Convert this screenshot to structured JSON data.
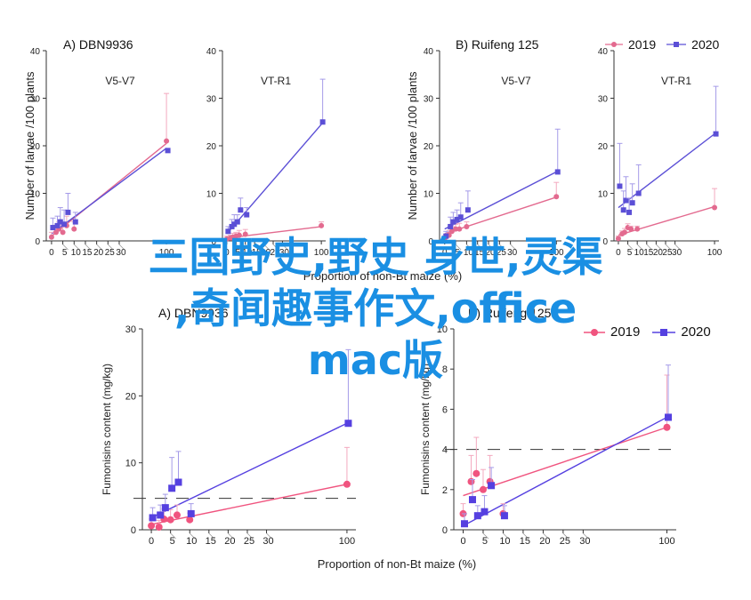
{
  "colors": {
    "s2019": "#e36a8f",
    "s2020": "#5b4fd6",
    "s2019_bottom": "#f0547f",
    "s2020_bottom": "#5540e0",
    "overlay": "#1a8fe3"
  },
  "panels": {
    "A": {
      "title": "A)  DBN9936"
    },
    "B": {
      "title": "B)  Ruifeng 125"
    },
    "C": {
      "title": "A) DBN9936"
    },
    "D": {
      "title": "B) Ruifeng 125"
    }
  },
  "legend_top": {
    "s2019": "2019",
    "s2020": "2020"
  },
  "legend_bottom": {
    "s2019": "2019",
    "s2020": "2020"
  },
  "overlay": {
    "line1": "三国野史,野史 身世,灵渠",
    "line2": ",奇闻趣事作文,office",
    "line3": "mac版"
  },
  "chart_data": [
    {
      "type": "scatter",
      "title": "V5-V7",
      "ylabel": "Number of larvae /100 plants",
      "xlabel": "Proportion of non-Bt maize (%)",
      "ylim": [
        0,
        40
      ],
      "yticks": [
        0,
        10,
        20,
        30,
        40
      ],
      "xticks": [
        0,
        5,
        10,
        15,
        20,
        25,
        30,
        100
      ],
      "series": [
        {
          "name": "2019",
          "x": [
            0,
            2,
            3.3,
            5,
            6.7,
            10,
            100
          ],
          "y": [
            0.8,
            1.8,
            2.5,
            1.8,
            3.2,
            2.5,
            21
          ],
          "err": [
            1,
            1.5,
            1.5,
            1.5,
            2,
            1.5,
            10
          ]
        },
        {
          "name": "2020",
          "x": [
            0,
            2,
            3.3,
            5,
            6.7,
            10,
            100
          ],
          "y": [
            2.8,
            3.2,
            4,
            3.5,
            6,
            4,
            19
          ],
          "err": [
            2,
            2,
            3,
            3,
            4,
            2,
            0
          ]
        }
      ],
      "trend": [
        {
          "name": "2019",
          "x": [
            0,
            100
          ],
          "y": [
            1,
            20.5
          ]
        },
        {
          "name": "2020",
          "x": [
            0,
            100
          ],
          "y": [
            1.5,
            19.5
          ]
        }
      ]
    },
    {
      "type": "scatter",
      "title": "VT-R1",
      "ylim": [
        0,
        40
      ],
      "yticks": [
        0,
        10,
        20,
        30,
        40
      ],
      "xticks": [
        0,
        5,
        10,
        15,
        20,
        25,
        30,
        100
      ],
      "series": [
        {
          "name": "2019",
          "x": [
            0,
            2,
            3.3,
            5,
            6.7,
            10,
            100
          ],
          "y": [
            0.4,
            0.6,
            0.8,
            1,
            1.2,
            1.4,
            3.2
          ],
          "err": [
            0.6,
            0.6,
            0.8,
            0.8,
            1,
            1,
            0.8
          ]
        },
        {
          "name": "2020",
          "x": [
            0,
            2,
            3.3,
            5,
            6.7,
            10,
            100
          ],
          "y": [
            2,
            3,
            3.5,
            4,
            6.5,
            5.5,
            25
          ],
          "err": [
            1,
            1.5,
            2,
            1.5,
            2.5,
            1.5,
            9
          ]
        }
      ],
      "trend": [
        {
          "name": "2019",
          "x": [
            0,
            100
          ],
          "y": [
            0.6,
            3
          ]
        },
        {
          "name": "2020",
          "x": [
            0,
            100
          ],
          "y": [
            1.5,
            24.5
          ]
        }
      ]
    },
    {
      "type": "scatter",
      "title": "V5-V7",
      "ylabel": "Number of larvae /100 plants",
      "xlabel": "Proportion of non-Bt maize (%)",
      "ylim": [
        0,
        40
      ],
      "yticks": [
        0,
        10,
        20,
        30,
        40
      ],
      "xticks": [
        0,
        5,
        10,
        15,
        20,
        25,
        30,
        100
      ],
      "series": [
        {
          "name": "2019",
          "x": [
            0,
            2,
            3.3,
            5,
            6.7,
            10,
            100
          ],
          "y": [
            0.5,
            1.2,
            2,
            2.5,
            2.5,
            3,
            9.3
          ],
          "err": [
            0.6,
            1,
            1,
            1,
            1.2,
            1,
            3
          ]
        },
        {
          "name": "2020",
          "x": [
            0,
            2,
            3.3,
            5,
            6.7,
            10,
            100
          ],
          "y": [
            1,
            3,
            4,
            4.5,
            5,
            6.5,
            14.5
          ],
          "err": [
            1,
            2,
            2,
            2,
            3,
            4,
            9
          ]
        }
      ],
      "trend": [
        {
          "name": "2019",
          "x": [
            0,
            100
          ],
          "y": [
            1.5,
            9.2
          ]
        },
        {
          "name": "2020",
          "x": [
            0,
            100
          ],
          "y": [
            2.5,
            14.5
          ]
        }
      ]
    },
    {
      "type": "scatter",
      "title": "VT-R1",
      "ylim": [
        0,
        40
      ],
      "yticks": [
        0,
        10,
        20,
        30,
        40
      ],
      "xticks": [
        0,
        5,
        10,
        15,
        20,
        25,
        30,
        100
      ],
      "series": [
        {
          "name": "2019",
          "x": [
            0,
            2,
            3.3,
            5,
            6.7,
            10,
            100
          ],
          "y": [
            0.5,
            1.5,
            1.8,
            2.8,
            2.5,
            2.5,
            7
          ],
          "err": [
            0.5,
            0.6,
            0.8,
            0.8,
            0.6,
            0.6,
            4
          ]
        },
        {
          "name": "2020",
          "x": [
            0,
            2,
            3.3,
            5,
            6.7,
            10,
            100
          ],
          "y": [
            11.5,
            6.5,
            8.5,
            6,
            8,
            10,
            22.5
          ],
          "err": [
            9,
            4,
            5,
            3,
            4,
            6,
            10
          ]
        }
      ],
      "trend": [
        {
          "name": "2019",
          "x": [
            0,
            100
          ],
          "y": [
            1.2,
            7.2
          ]
        },
        {
          "name": "2020",
          "x": [
            0,
            100
          ],
          "y": [
            7,
            22.5
          ]
        }
      ]
    },
    {
      "type": "scatter",
      "ylabel": "Fumonisins content (mg/kg)",
      "xlabel": "Proportion of non-Bt maize (%)",
      "ylim": [
        0,
        30
      ],
      "yticks": [
        0,
        10,
        20,
        30
      ],
      "xticks": [
        0,
        5,
        10,
        15,
        20,
        25,
        30,
        100
      ],
      "hline": 4.7,
      "series": [
        {
          "name": "2019",
          "x": [
            0,
            2,
            3.3,
            5,
            6.7,
            10,
            100
          ],
          "y": [
            0.6,
            0.4,
            1.6,
            1.5,
            2.2,
            1.5,
            6.8
          ],
          "err": [
            1,
            1,
            1.5,
            1.5,
            1.5,
            1,
            5.5
          ]
        },
        {
          "name": "2020",
          "x": [
            0,
            2,
            3.3,
            5,
            6.7,
            10,
            100
          ],
          "y": [
            1.8,
            2.2,
            3.3,
            6.2,
            7.1,
            2.4,
            15.9
          ],
          "err": [
            1.5,
            1.5,
            2,
            4.6,
            4.6,
            1.5,
            11
          ]
        }
      ],
      "trend": [
        {
          "name": "2019",
          "x": [
            0,
            100
          ],
          "y": [
            0.8,
            6.8
          ]
        },
        {
          "name": "2020",
          "x": [
            0,
            100
          ],
          "y": [
            1.8,
            15.9
          ]
        }
      ]
    },
    {
      "type": "scatter",
      "ylabel": "Fumonisins content (mg/kg)",
      "xlabel": "Proportion of non-Bt maize (%)",
      "ylim": [
        0,
        10
      ],
      "yticks": [
        0,
        2,
        4,
        6,
        8,
        10
      ],
      "xticks": [
        0,
        5,
        10,
        15,
        20,
        25,
        30,
        100
      ],
      "hline": 4,
      "series": [
        {
          "name": "2019",
          "x": [
            0,
            2,
            3.3,
            5,
            6.7,
            10,
            100
          ],
          "y": [
            0.8,
            2.4,
            2.8,
            2,
            2.4,
            0.8,
            5.1
          ],
          "err": [
            0.5,
            1.3,
            1.8,
            1,
            1.3,
            0.5,
            2.6
          ]
        },
        {
          "name": "2020",
          "x": [
            0,
            2,
            3.3,
            5,
            6.7,
            10,
            100
          ],
          "y": [
            0.3,
            1.5,
            0.7,
            0.9,
            2.2,
            0.7,
            5.6
          ],
          "err": [
            0.5,
            1,
            0.5,
            0.8,
            0.9,
            0.5,
            2.6
          ]
        }
      ],
      "trend": [
        {
          "name": "2019",
          "x": [
            0,
            100
          ],
          "y": [
            1.7,
            5.1
          ]
        },
        {
          "name": "2020",
          "x": [
            0,
            100
          ],
          "y": [
            0.2,
            5.6
          ]
        }
      ]
    }
  ]
}
